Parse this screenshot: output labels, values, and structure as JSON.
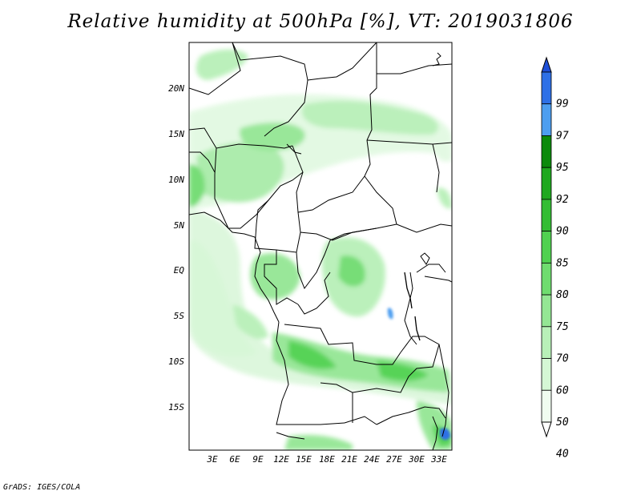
{
  "title": "Relative humidity at 500hPa [%], VT: 2019031806",
  "credit": "GrADS: IGES/COLA",
  "map": {
    "lon_range": [
      0,
      34
    ],
    "lat_range": [
      -20,
      25
    ],
    "lon_ticks": [
      "3E",
      "6E",
      "9E",
      "12E",
      "15E",
      "18E",
      "21E",
      "24E",
      "27E",
      "30E",
      "33E"
    ],
    "lat_ticks": [
      "20N",
      "15N",
      "10N",
      "5N",
      "EQ",
      "5S",
      "10S",
      "15S"
    ]
  },
  "colorbar": {
    "levels": [
      "99",
      "97",
      "95",
      "92",
      "90",
      "85",
      "80",
      "75",
      "70",
      "60",
      "50",
      "40"
    ],
    "colors": [
      "#1e4fd8",
      "#2e70e6",
      "#4d9ef0",
      "#0c8a0c",
      "#1fa81f",
      "#34bd34",
      "#50d150",
      "#6fdc6f",
      "#94e694",
      "#b8f0b8",
      "#d5f7d5",
      "#f0fcf0",
      "#ffffff"
    ]
  },
  "colors": {
    "border": "#000000",
    "green_light": "#d5f7d5",
    "green_mid": "#94e694",
    "green_dark": "#34bd34"
  }
}
